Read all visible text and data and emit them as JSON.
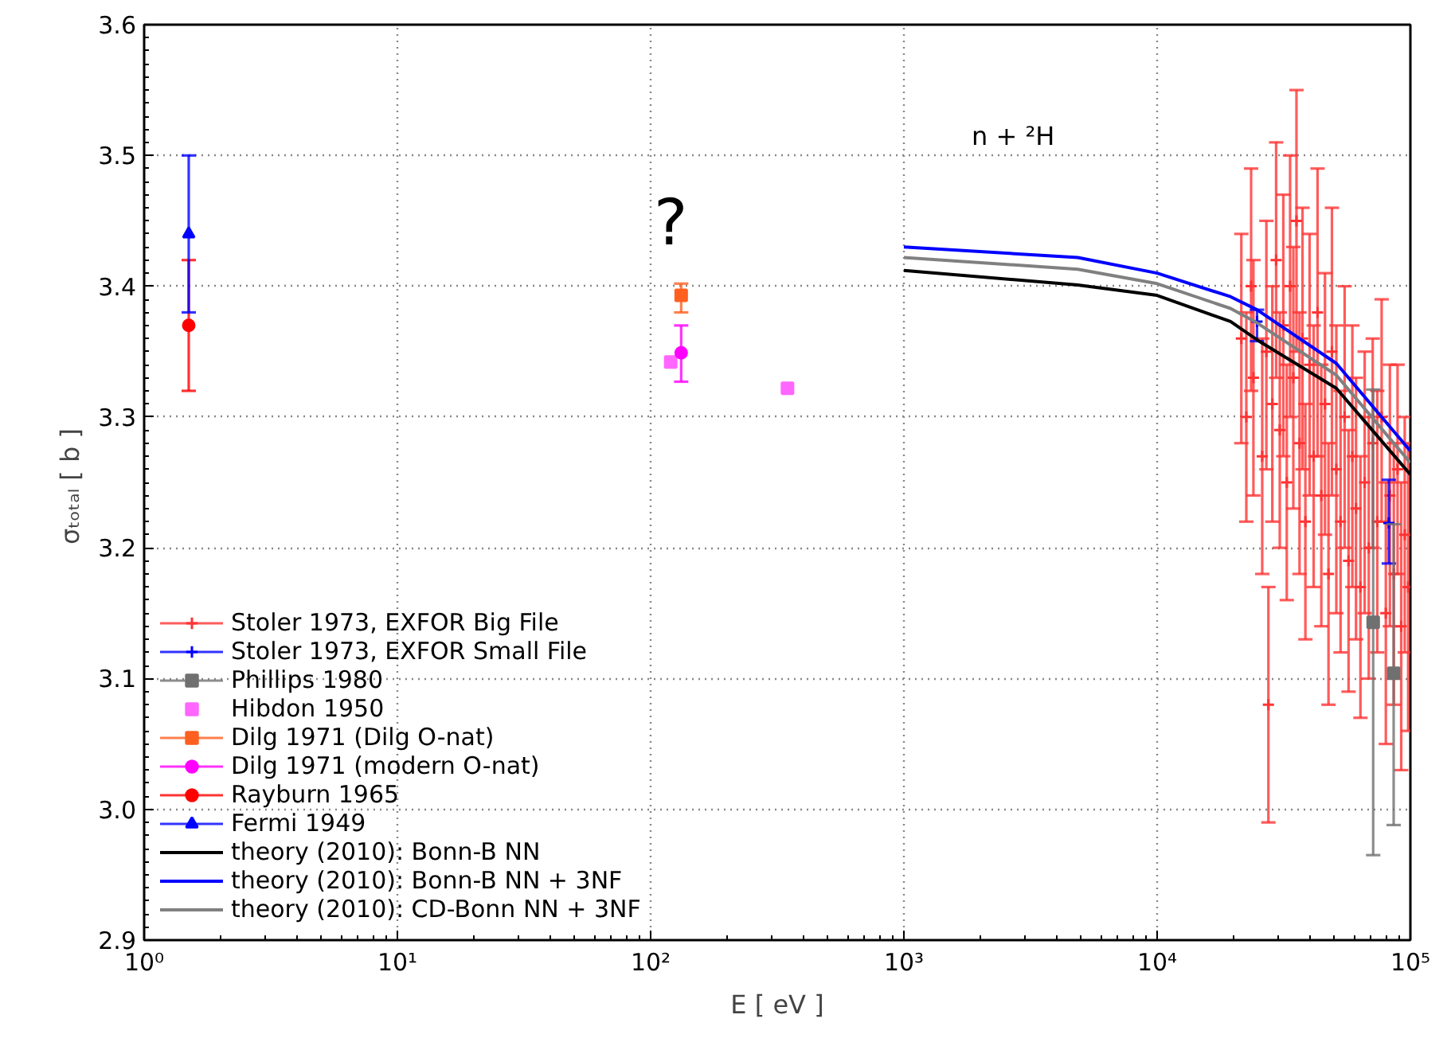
{
  "chart_data": {
    "type": "scatter",
    "xlabel": "E [ eV ]",
    "ylabel": "σₜₒₜₐₗ  [ b ]",
    "log": "x",
    "grid": true,
    "legend": "bottom left",
    "xlim": [
      1,
      100000
    ],
    "ylim": [
      2.9,
      3.6
    ],
    "xticks": [
      {
        "value": 1,
        "label": "10⁰"
      },
      {
        "value": 10,
        "label": "10¹"
      },
      {
        "value": 100,
        "label": "10²"
      },
      {
        "value": 1000,
        "label": "10³"
      },
      {
        "value": 10000,
        "label": "10⁴"
      },
      {
        "value": 100000,
        "label": "10⁵"
      }
    ],
    "yticks": [
      2.9,
      {
        "value": 3,
        "label": "3.0"
      },
      3.1,
      3.2,
      3.3,
      3.4,
      3.5,
      3.6
    ],
    "annotations": [
      "n + ²H",
      "?"
    ],
    "series": [
      {
        "name": "Stoler 1973, EXFOR Big File",
        "marker": "cross",
        "color": "#ff3333",
        "x": [
          21500,
          22500,
          23500,
          24000,
          25000,
          26000,
          27000,
          27500,
          28500,
          29500,
          30500,
          31500,
          32500,
          33500,
          34500,
          35500,
          36500,
          37500,
          38500,
          40000,
          41500,
          43000,
          44500,
          46000,
          47500,
          49000,
          51000,
          53000,
          55000,
          57000,
          59000,
          61000,
          63500,
          66000,
          68500,
          71000,
          74000,
          77000,
          80000,
          83000,
          86000,
          89000,
          92000,
          95000,
          98000
        ],
        "values": [
          3.36,
          3.3,
          3.4,
          3.33,
          null,
          3.27,
          3.35,
          3.08,
          3.31,
          3.42,
          3.29,
          3.37,
          3.25,
          3.4,
          3.33,
          3.45,
          3.28,
          3.36,
          3.22,
          3.34,
          3.27,
          3.38,
          3.24,
          3.31,
          3.18,
          3.35,
          3.26,
          3.22,
          3.3,
          3.19,
          3.27,
          3.23,
          3.17,
          3.25,
          3.2,
          3.28,
          3.22,
          3.3,
          3.15,
          3.24,
          3.18,
          3.26,
          3.14,
          3.21,
          3.17
        ],
        "errors": [
          [
            3.28,
            3.44
          ],
          [
            3.22,
            3.38
          ],
          [
            3.32,
            3.49
          ],
          [
            3.24,
            3.42
          ],
          null,
          [
            3.18,
            3.36
          ],
          [
            3.26,
            3.45
          ],
          [
            2.99,
            3.17
          ],
          [
            3.22,
            3.4
          ],
          [
            3.33,
            3.51
          ],
          [
            3.2,
            3.38
          ],
          [
            3.27,
            3.47
          ],
          [
            3.16,
            3.34
          ],
          [
            3.3,
            3.5
          ],
          [
            3.23,
            3.43
          ],
          [
            3.35,
            3.55
          ],
          [
            3.18,
            3.38
          ],
          [
            3.26,
            3.46
          ],
          [
            3.13,
            3.31
          ],
          [
            3.24,
            3.44
          ],
          [
            3.17,
            3.37
          ],
          [
            3.27,
            3.49
          ],
          [
            3.14,
            3.34
          ],
          [
            3.21,
            3.41
          ],
          [
            3.08,
            3.28
          ],
          [
            3.24,
            3.46
          ],
          [
            3.15,
            3.37
          ],
          [
            3.12,
            3.32
          ],
          [
            3.2,
            3.4
          ],
          [
            3.09,
            3.29
          ],
          [
            3.17,
            3.37
          ],
          [
            3.13,
            3.33
          ],
          [
            3.07,
            3.27
          ],
          [
            3.15,
            3.35
          ],
          [
            3.1,
            3.3
          ],
          [
            3.2,
            3.36
          ],
          [
            3.12,
            3.32
          ],
          [
            3.22,
            3.39
          ],
          [
            3.05,
            3.25
          ],
          [
            3.14,
            3.34
          ],
          [
            3.08,
            3.28
          ],
          [
            3.18,
            3.34
          ],
          [
            3.03,
            3.25
          ],
          [
            3.12,
            3.3
          ],
          [
            3.06,
            3.28
          ]
        ]
      },
      {
        "name": "Stoler 1973, EXFOR Small File",
        "marker": "cross",
        "color": "#0000ff",
        "x": [
          24800,
          82200
        ],
        "values": [
          3.373,
          3.219
        ],
        "errors": [
          [
            3.358,
            3.382
          ],
          [
            3.188,
            3.252
          ]
        ]
      },
      {
        "name": "Phillips 1980",
        "marker": "square",
        "color": "#707070",
        "x": [
          71300,
          85900
        ],
        "values": [
          3.143,
          3.104
        ],
        "errors": [
          [
            2.965,
            3.321
          ],
          [
            2.988,
            3.218
          ]
        ]
      },
      {
        "name": "Hibdon 1950",
        "marker": "square",
        "color": "#ff66ff",
        "x": [
          120,
          347
        ],
        "values": [
          3.342,
          3.322
        ]
      },
      {
        "name": "Dilg 1971 (Dilg O-nat)",
        "marker": "square",
        "color": "#ff6020",
        "x": [
          132
        ],
        "values": [
          3.393
        ],
        "errors": [
          [
            3.38,
            3.402
          ]
        ]
      },
      {
        "name": "Dilg 1971 (modern O-nat)",
        "marker": "circle",
        "color": "#ff00ff",
        "x": [
          132
        ],
        "values": [
          3.349
        ],
        "errors": [
          [
            3.327,
            3.37
          ]
        ]
      },
      {
        "name": "Rayburn 1965",
        "marker": "circle",
        "color": "#ff0000",
        "x": [
          1.5
        ],
        "values": [
          3.37
        ],
        "errors": [
          [
            3.32,
            3.42
          ]
        ]
      },
      {
        "name": "Fermi 1949",
        "marker": "triangle",
        "color": "#0000ff",
        "x": [
          1.5
        ],
        "values": [
          3.44
        ],
        "errors": [
          [
            3.38,
            3.5
          ]
        ]
      },
      {
        "name": "theory (2010): Bonn-B NN",
        "type": "line",
        "line_style": "solid",
        "color": "#000000",
        "x": [
          1000,
          4860,
          10000,
          19500,
          24800,
          51000,
          100000
        ],
        "values": [
          3.412,
          3.401,
          3.393,
          3.373,
          3.359,
          3.322,
          3.256
        ]
      },
      {
        "name": "theory (2010): Bonn-B NN + 3NF",
        "type": "line",
        "line_style": "solid",
        "color": "#0000ff",
        "x": [
          1000,
          4860,
          10000,
          19500,
          24800,
          51000,
          100000
        ],
        "values": [
          3.43,
          3.422,
          3.41,
          3.392,
          3.382,
          3.341,
          3.274
        ]
      },
      {
        "name": "theory (2010): CD-Bonn NN + 3NF",
        "type": "line",
        "line_style": "solid",
        "color": "#808080",
        "x": [
          1000,
          4860,
          10000,
          19500,
          24800,
          51000,
          100000
        ],
        "values": [
          3.422,
          3.413,
          3.402,
          3.383,
          3.372,
          3.332,
          3.265
        ]
      }
    ]
  }
}
